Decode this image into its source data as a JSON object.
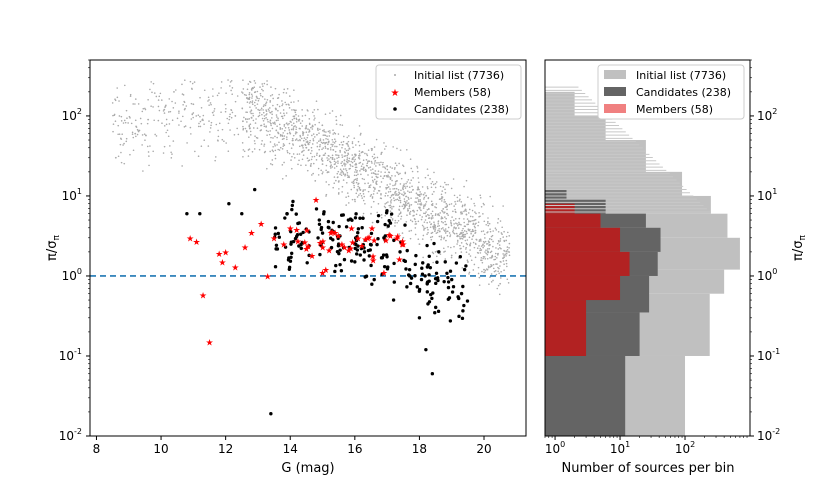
{
  "chart_data": [
    {
      "type": "scatter",
      "panel": "left",
      "xlabel": "G (mag)",
      "ylabel": "π/σ_π",
      "xlim": [
        7.8,
        21.3
      ],
      "ylim": [
        0.01,
        500
      ],
      "yscale": "log",
      "x_ticks": [
        "8",
        "10",
        "12",
        "14",
        "16",
        "18",
        "20"
      ],
      "y_ticks": [
        "10",
        "10",
        "10",
        "10",
        "10"
      ],
      "y_tick_exponents": [
        "-2",
        "-1",
        "0",
        "1",
        "2"
      ],
      "legend_position": "top-right",
      "reference_line": {
        "y": 1.0,
        "style": "dashed",
        "color": "#1f77b4"
      },
      "series": [
        {
          "name": "Initial list (7736)",
          "marker": "dot",
          "color": "#aaaaaa",
          "x": [
            8.6,
            9.2,
            9.6,
            10.1,
            10.4,
            11.0,
            11.6,
            12.3,
            12.8,
            13.4,
            14.0,
            14.5,
            15.0,
            15.5,
            16.0,
            16.5,
            17.0,
            17.5,
            18.0,
            18.5,
            19.0,
            19.5,
            20.0,
            20.5
          ],
          "y": [
            30,
            60,
            90,
            120,
            200,
            140,
            110,
            100,
            95,
            80,
            60,
            40,
            25,
            15,
            9,
            6,
            4,
            3,
            2.5,
            2,
            1.8,
            1.5,
            1.2,
            0.8
          ]
        },
        {
          "name": "Members (58)",
          "marker": "star",
          "color": "#ff0000",
          "x": [
            10.9,
            11.1,
            11.3,
            11.5,
            11.8,
            11.9,
            12.0,
            12.3,
            12.6,
            12.8,
            13.1,
            13.3,
            13.5,
            13.8,
            14.0,
            14.2,
            14.5,
            14.8,
            15.0,
            15.1,
            15.3,
            15.6,
            15.9,
            16.1,
            16.4,
            16.6,
            16.9,
            17.1,
            17.3,
            17.5
          ],
          "y": [
            3.0,
            2.7,
            0.58,
            0.15,
            1.9,
            1.5,
            2.0,
            1.3,
            2.3,
            3.5,
            4.5,
            1.0,
            3.0,
            2.5,
            4.0,
            3.8,
            2.2,
            9.0,
            1.1,
            1.2,
            3.6,
            2.5,
            4.0,
            3.0,
            3.0,
            2.8,
            1.1,
            3.2,
            3.0,
            2.5
          ]
        },
        {
          "name": "Candidates (238)",
          "marker": "dot",
          "color": "#000000",
          "x": [
            10.8,
            11.2,
            12.1,
            12.5,
            12.9,
            13.4,
            13.9,
            14.4,
            14.9,
            15.2,
            15.5,
            15.8,
            16.0,
            16.3,
            16.6,
            16.9,
            17.2,
            17.4,
            17.7,
            18.0,
            18.2,
            18.4,
            18.6,
            18.8,
            19.0,
            19.4
          ],
          "y": [
            6.0,
            6.0,
            8.0,
            6.0,
            12.0,
            0.019,
            6.0,
            3.5,
            5.0,
            4.0,
            2.5,
            5.0,
            1.5,
            2.0,
            0.9,
            3.0,
            0.5,
            2.0,
            1.0,
            0.3,
            0.12,
            0.06,
            2.0,
            1.5,
            0.9,
            1.2
          ]
        }
      ]
    },
    {
      "type": "bar",
      "panel": "right",
      "orientation": "horizontal",
      "xscale": "log",
      "yscale": "log",
      "xlabel": "Number of sources per bin",
      "ylabel": "π/σ_π",
      "xlim": [
        0.7,
        1000
      ],
      "ylim": [
        0.01,
        500
      ],
      "x_ticks": [
        "10",
        "10",
        "10"
      ],
      "x_tick_exponents": [
        "0",
        "1",
        "2"
      ],
      "y_ticks": [
        "10",
        "10",
        "10",
        "10",
        "10"
      ],
      "y_tick_exponents": [
        "-2",
        "-1",
        "0",
        "1",
        "2"
      ],
      "legend_position": "top-right",
      "series": [
        {
          "name": "Initial list (7736)",
          "color": "#c0c0c0",
          "bins": [
            [
              0.01,
              0.1,
              100
            ],
            [
              0.1,
              0.6,
              240
            ],
            [
              0.6,
              1.2,
              400
            ],
            [
              1.2,
              3.0,
              700
            ],
            [
              3.0,
              6.0,
              450
            ],
            [
              6.0,
              10,
              250
            ],
            [
              10,
              20,
              90
            ],
            [
              20,
              50,
              25
            ],
            [
              50,
              100,
              6
            ],
            [
              100,
              200,
              2
            ]
          ]
        },
        {
          "name": "Candidates (238)",
          "color": "#646464",
          "bins": [
            [
              0.01,
              0.1,
              12
            ],
            [
              0.1,
              0.35,
              20
            ],
            [
              0.35,
              1.0,
              28
            ],
            [
              1.0,
              2.0,
              38
            ],
            [
              2.0,
              4.0,
              42
            ],
            [
              4.0,
              6.0,
              25
            ],
            [
              6.0,
              9.0,
              6
            ],
            [
              9.0,
              12,
              1.5
            ]
          ]
        },
        {
          "name": "Members (58)",
          "color": "#f08080",
          "bins": [
            [
              0.1,
              0.5,
              3
            ],
            [
              0.5,
              1.0,
              10
            ],
            [
              1.0,
              2.0,
              14
            ],
            [
              2.0,
              4.0,
              10
            ],
            [
              4.0,
              6.0,
              5
            ],
            [
              6.0,
              8.0,
              2
            ]
          ]
        }
      ]
    }
  ]
}
